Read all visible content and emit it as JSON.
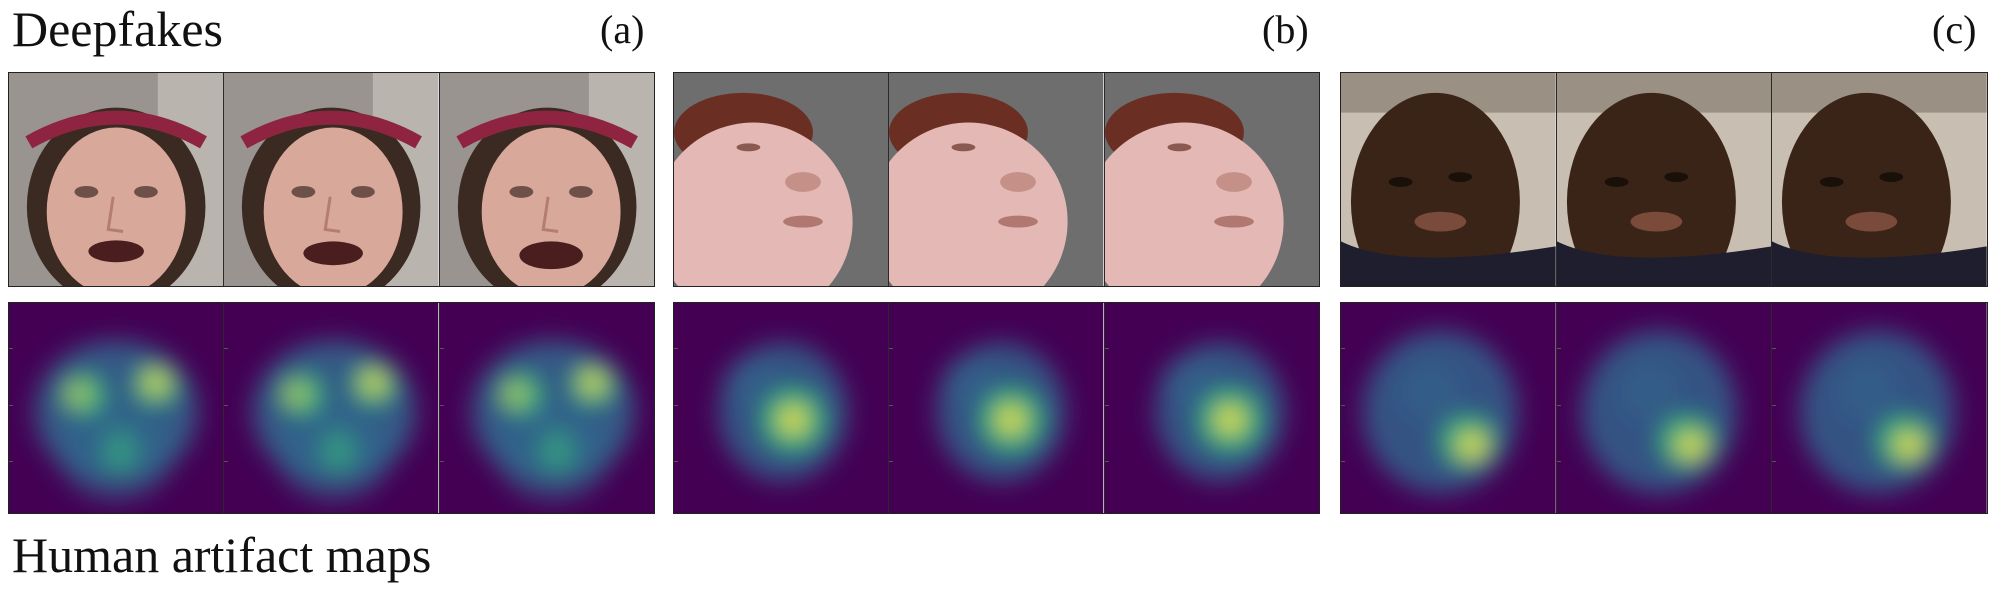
{
  "figure": {
    "top_title": "Deepfakes",
    "bottom_title": "Human artifact maps",
    "panels": [
      {
        "label": "(a)",
        "subject": "woman-headband",
        "frames": 3
      },
      {
        "label": "(b)",
        "subject": "woman-upturned-face",
        "frames": 3
      },
      {
        "label": "(c)",
        "subject": "man-tilted-head",
        "frames": 3
      }
    ],
    "colormap": "viridis",
    "colors": {
      "heatmap_background": "#440154",
      "heatmap_mid": "#31688e",
      "heatmap_high": "#35b779",
      "heatmap_peak": "#fde725"
    }
  }
}
